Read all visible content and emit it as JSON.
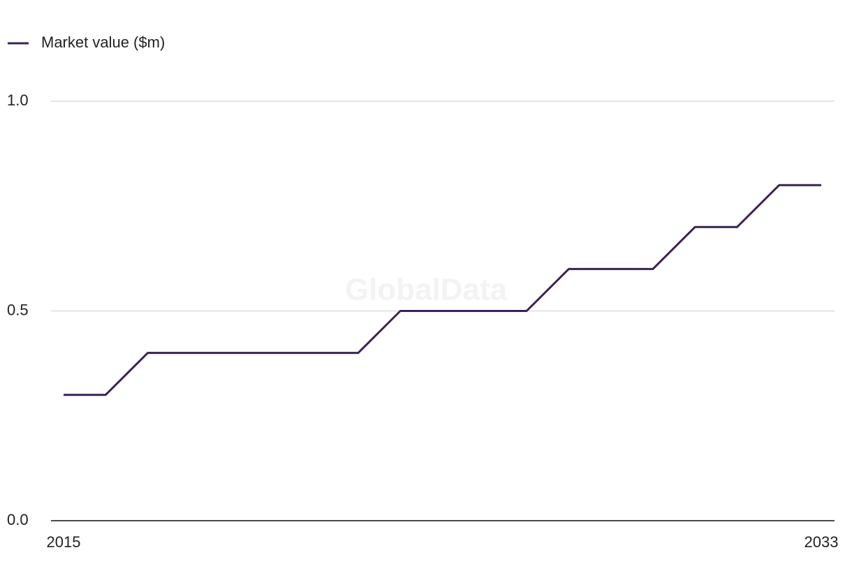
{
  "chart_data": {
    "type": "line",
    "watermark": "GlobalData",
    "x": [
      2015,
      2016,
      2017,
      2018,
      2019,
      2020,
      2021,
      2022,
      2023,
      2024,
      2025,
      2026,
      2027,
      2028,
      2029,
      2030,
      2031,
      2032,
      2033
    ],
    "series": [
      {
        "name": "Market value ($m)",
        "color": "#3a2355",
        "values": [
          0.3,
          0.3,
          0.4,
          0.4,
          0.4,
          0.4,
          0.4,
          0.4,
          0.5,
          0.5,
          0.5,
          0.5,
          0.6,
          0.6,
          0.6,
          0.7,
          0.7,
          0.8,
          0.8
        ]
      }
    ],
    "xlim": [
      2015,
      2033
    ],
    "xticks": [
      2015,
      2033
    ],
    "ylim": [
      0,
      1
    ],
    "yticks": [
      {
        "value": 0,
        "label": "0.0"
      },
      0.5,
      {
        "value": 1,
        "label": "1.0"
      }
    ],
    "grid": true,
    "legend": "top-left"
  }
}
